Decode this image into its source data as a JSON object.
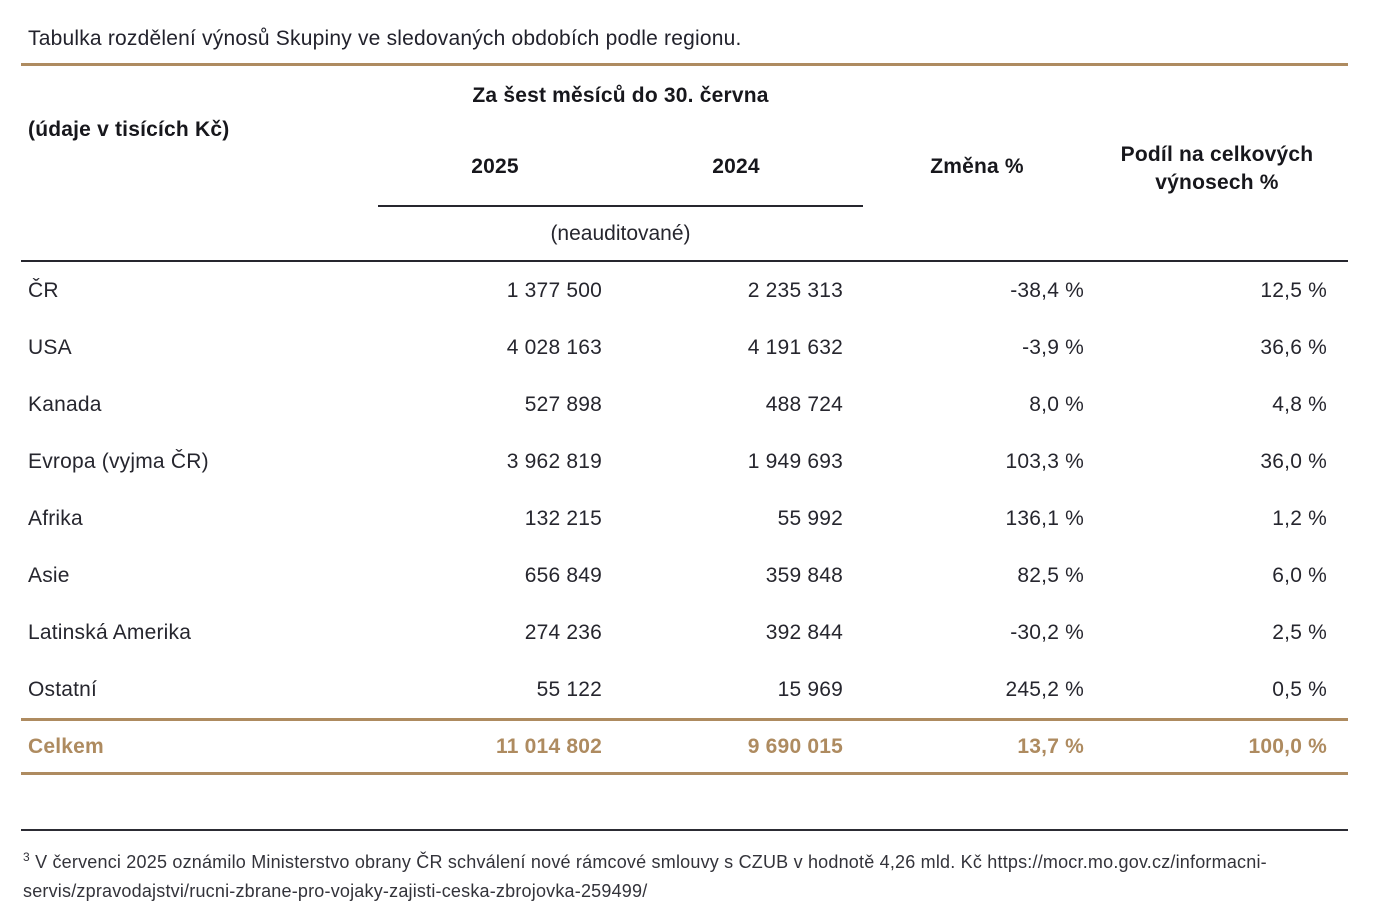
{
  "accent_color": "#ae8b60",
  "text_color": "#26262e",
  "title": "Tabulka rozdělení výnosů Skupiny ve sledovaných obdobích podle regionu.",
  "table": {
    "period_header": "Za šest měsíců do 30. června",
    "units_label": "(údaje v tisících Kč)",
    "columns": {
      "y2025": "2025",
      "y2024": "2024",
      "change": "Změna %",
      "share": "Podíl na celkových výnosech %"
    },
    "unaudited_note": "(neauditované)",
    "rows": [
      {
        "region": "ČR",
        "y2025": "1 377 500",
        "y2024": "2 235 313",
        "change": "-38,4 %",
        "share": "12,5 %"
      },
      {
        "region": "USA",
        "y2025": "4 028 163",
        "y2024": "4 191 632",
        "change": "-3,9 %",
        "share": "36,6 %"
      },
      {
        "region": "Kanada",
        "y2025": "527 898",
        "y2024": "488 724",
        "change": "8,0 %",
        "share": "4,8 %"
      },
      {
        "region": "Evropa (vyjma ČR)",
        "y2025": "3 962 819",
        "y2024": "1 949 693",
        "change": "103,3 %",
        "share": "36,0 %"
      },
      {
        "region": "Afrika",
        "y2025": "132 215",
        "y2024": "55 992",
        "change": "136,1 %",
        "share": "1,2 %"
      },
      {
        "region": "Asie",
        "y2025": "656 849",
        "y2024": "359 848",
        "change": "82,5 %",
        "share": "6,0 %"
      },
      {
        "region": "Latinská Amerika",
        "y2025": "274 236",
        "y2024": "392 844",
        "change": "-30,2 %",
        "share": "2,5 %"
      },
      {
        "region": "Ostatní",
        "y2025": "55 122",
        "y2024": "15 969",
        "change": "245,2 %",
        "share": "0,5 %"
      }
    ],
    "total": {
      "region": "Celkem",
      "y2025": "11 014 802",
      "y2024": "9 690 015",
      "change": "13,7 %",
      "share": "100,0 %"
    }
  },
  "footnote": {
    "marker": "3",
    "text_before": "V červenci 2025 oznámilo Ministerstvo obrany ČR schválení nové rámcové smlouvy s CZUB v hodnotě 4,26 mld. Kč ",
    "url": "https://mocr.mo.gov.cz/informacni-servis/zpravodajstvi/rucni-zbrane-pro-vojaky-zajisti-ceska-zbrojovka-259499/"
  }
}
